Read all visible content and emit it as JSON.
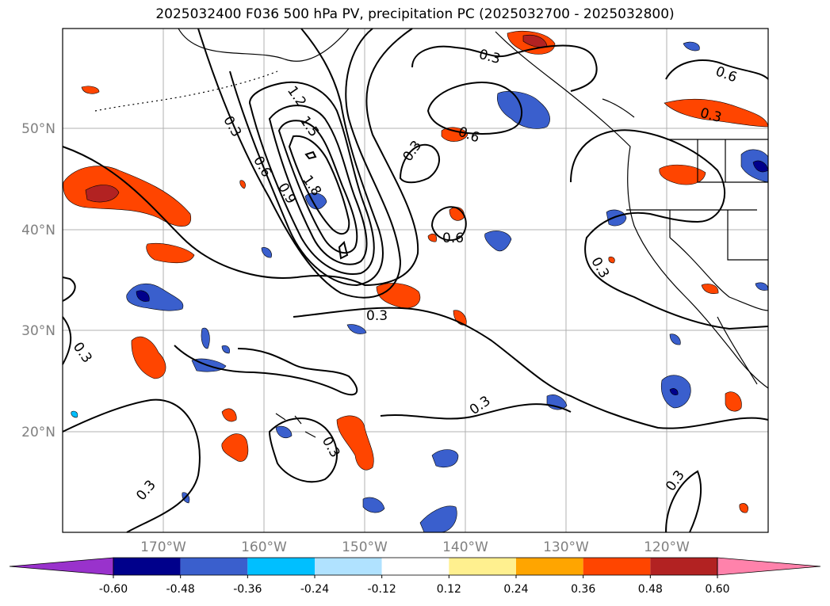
{
  "title": "2025032400 F036 500 hPa PV, precipitation PC (2025032700 - 2025032800)",
  "map": {
    "lat_ticks": [
      "50°N",
      "40°N",
      "30°N",
      "20°N"
    ],
    "lon_ticks": [
      "170°W",
      "160°W",
      "150°W",
      "140°W",
      "130°W",
      "120°W"
    ],
    "contour_labels": [
      "0.3",
      "0.3",
      "0.3",
      "0.3",
      "0.3",
      "0.3",
      "0.3",
      "0.3",
      "0.3",
      "0.6",
      "0.6",
      "0.6",
      "0.6",
      "0.3",
      "0.3",
      "0.9",
      "1.2",
      "1.5",
      "1.8"
    ],
    "grid": true,
    "tick_color": "#808080"
  },
  "colorbar": {
    "levels": [
      "-0.60",
      "-0.48",
      "-0.36",
      "-0.24",
      "-0.12",
      "0.12",
      "0.24",
      "0.36",
      "0.48",
      "0.60"
    ],
    "colors": [
      "#9932cc",
      "#00008b",
      "#3a5fcd",
      "#00bfff",
      "#b0e2ff",
      "#ffffff",
      "#fff08f",
      "#ffa500",
      "#ff4500",
      "#b22222",
      "#ff82ab"
    ],
    "extend": "both"
  }
}
